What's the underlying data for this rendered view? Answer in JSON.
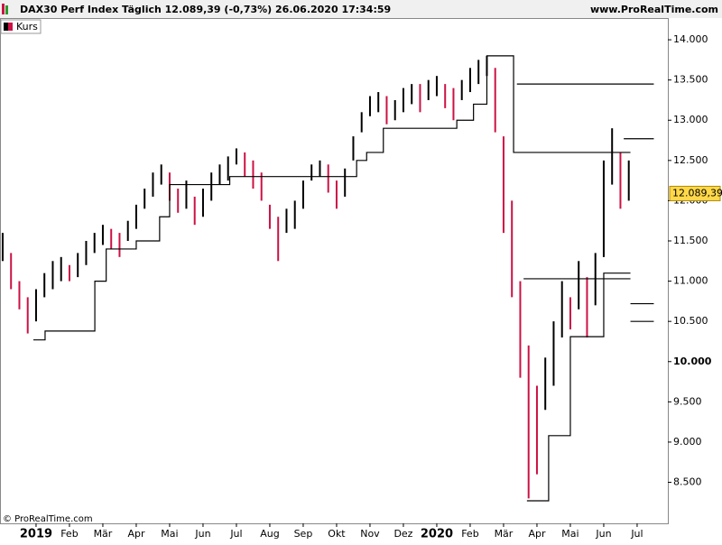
{
  "chart_data": {
    "type": "ohlc",
    "title": "DAX30 Perf Index Täglich 12.089,39 (-0,73%) 26.06.2020 17:34:59",
    "source": "www.ProRealTime.com",
    "copyright": "© ProRealTime.com",
    "legend": "Kurs",
    "up_color": "#000000",
    "down_color": "#cc1144",
    "last_value": 12089.39,
    "last_label": "12.089,39",
    "xlim": [
      -1.08,
      18.92
    ],
    "ylim": [
      7990,
      14270
    ],
    "xticks": [
      {
        "value": 0,
        "label": "2019"
      },
      {
        "value": 1,
        "label": "Feb"
      },
      {
        "value": 2,
        "label": "Mär"
      },
      {
        "value": 3,
        "label": "Apr"
      },
      {
        "value": 4,
        "label": "Mai"
      },
      {
        "value": 5,
        "label": "Jun"
      },
      {
        "value": 6,
        "label": "Jul"
      },
      {
        "value": 7,
        "label": "Aug"
      },
      {
        "value": 8,
        "label": "Sep"
      },
      {
        "value": 9,
        "label": "Okt"
      },
      {
        "value": 10,
        "label": "Nov"
      },
      {
        "value": 11,
        "label": "Dez"
      },
      {
        "value": 12,
        "label": "2020"
      },
      {
        "value": 13,
        "label": "Feb"
      },
      {
        "value": 14,
        "label": "Mär"
      },
      {
        "value": 15,
        "label": "Apr"
      },
      {
        "value": 16,
        "label": "Mai"
      },
      {
        "value": 17,
        "label": "Jun"
      },
      {
        "value": 18,
        "label": "Jul"
      }
    ],
    "yticks": [
      {
        "value": 8500,
        "label": "8.500"
      },
      {
        "value": 9000,
        "label": "9.000"
      },
      {
        "value": 9500,
        "label": "9.500"
      },
      {
        "value": 10000,
        "label": "10.000"
      },
      {
        "value": 10500,
        "label": "10.500"
      },
      {
        "value": 11000,
        "label": "11.000"
      },
      {
        "value": 11500,
        "label": "11.500"
      },
      {
        "value": 12000,
        "label": "12.000"
      },
      {
        "value": 12500,
        "label": "12.500"
      },
      {
        "value": 13000,
        "label": "13.000"
      },
      {
        "value": 13500,
        "label": "13.500"
      },
      {
        "value": 14000,
        "label": "14.000"
      }
    ],
    "bars": {
      "x": [
        -1,
        -0.75,
        -0.5,
        -0.25,
        0,
        0.25,
        0.5,
        0.75,
        1,
        1.25,
        1.5,
        1.75,
        2,
        2.25,
        2.5,
        2.75,
        3,
        3.25,
        3.5,
        3.75,
        4,
        4.25,
        4.5,
        4.75,
        5,
        5.25,
        5.5,
        5.75,
        6,
        6.25,
        6.5,
        6.75,
        7,
        7.25,
        7.5,
        7.75,
        8,
        8.25,
        8.5,
        8.75,
        9,
        9.25,
        9.5,
        9.75,
        10,
        10.25,
        10.5,
        10.75,
        11,
        11.25,
        11.5,
        11.75,
        12,
        12.25,
        12.5,
        12.75,
        13,
        13.25,
        13.5,
        13.75,
        14,
        14.25,
        14.5,
        14.75,
        15,
        15.25,
        15.5,
        15.75,
        16,
        16.25,
        16.5,
        16.75,
        17,
        17.25,
        17.5,
        17.75
      ],
      "low": [
        11250,
        10900,
        10650,
        10350,
        10500,
        10800,
        10900,
        11000,
        11000,
        11050,
        11200,
        11350,
        11450,
        11400,
        11300,
        11500,
        11650,
        11900,
        12050,
        12200,
        12000,
        11850,
        11900,
        11700,
        11800,
        12000,
        12200,
        12250,
        12450,
        12300,
        12150,
        12000,
        11650,
        11250,
        11600,
        11650,
        11900,
        12250,
        12300,
        12100,
        11900,
        12050,
        12500,
        12850,
        13050,
        13100,
        12950,
        13000,
        13100,
        13200,
        13100,
        13250,
        13300,
        13150,
        13000,
        13250,
        13350,
        13450,
        13550,
        12850,
        11600,
        10800,
        9800,
        8300,
        8600,
        9400,
        9700,
        10300,
        10400,
        10650,
        10300,
        10700,
        11300,
        12200,
        11900,
        12000
      ],
      "high": [
        11600,
        11350,
        11000,
        10800,
        10900,
        11100,
        11250,
        11300,
        11200,
        11350,
        11500,
        11600,
        11700,
        11650,
        11600,
        11750,
        11950,
        12150,
        12350,
        12450,
        12350,
        12150,
        12250,
        12050,
        12150,
        12350,
        12450,
        12550,
        12650,
        12600,
        12500,
        12350,
        11950,
        11800,
        11900,
        12000,
        12250,
        12450,
        12500,
        12450,
        12250,
        12400,
        12800,
        13100,
        13300,
        13350,
        13300,
        13250,
        13400,
        13450,
        13450,
        13500,
        13550,
        13450,
        13400,
        13500,
        13650,
        13750,
        13800,
        13650,
        12800,
        12000,
        11000,
        10200,
        9700,
        10050,
        10500,
        11000,
        10800,
        11250,
        11050,
        11350,
        12500,
        12900,
        12600,
        12500
      ]
    },
    "stops": [
      {
        "x": [
          -0.08,
          0.27,
          1.76,
          2.1,
          3.0,
          3.7,
          4.0,
          5.8,
          9.6,
          9.9,
          10.4,
          12.6,
          13.1,
          13.5,
          14.3,
          17.8
        ],
        "values": [
          10270,
          10380,
          11000,
          11400,
          11500,
          11800,
          12200,
          12300,
          12500,
          12600,
          12900,
          13000,
          13200,
          13800,
          12600,
          12600
        ]
      },
      {
        "x": [
          14.7,
          15.35,
          16.0,
          17.0,
          17.8
        ],
        "values": [
          8270,
          9080,
          10310,
          11100,
          11100
        ]
      }
    ],
    "levels": [
      {
        "from": 14.4,
        "to": 18.5,
        "value": 13450
      },
      {
        "from": 14.6,
        "to": 17.8,
        "value": 11030
      },
      {
        "from": 17.6,
        "to": 18.5,
        "value": 12770
      },
      {
        "from": 17.8,
        "to": 18.5,
        "value": 10720
      },
      {
        "from": 17.8,
        "to": 18.5,
        "value": 10500
      }
    ]
  }
}
